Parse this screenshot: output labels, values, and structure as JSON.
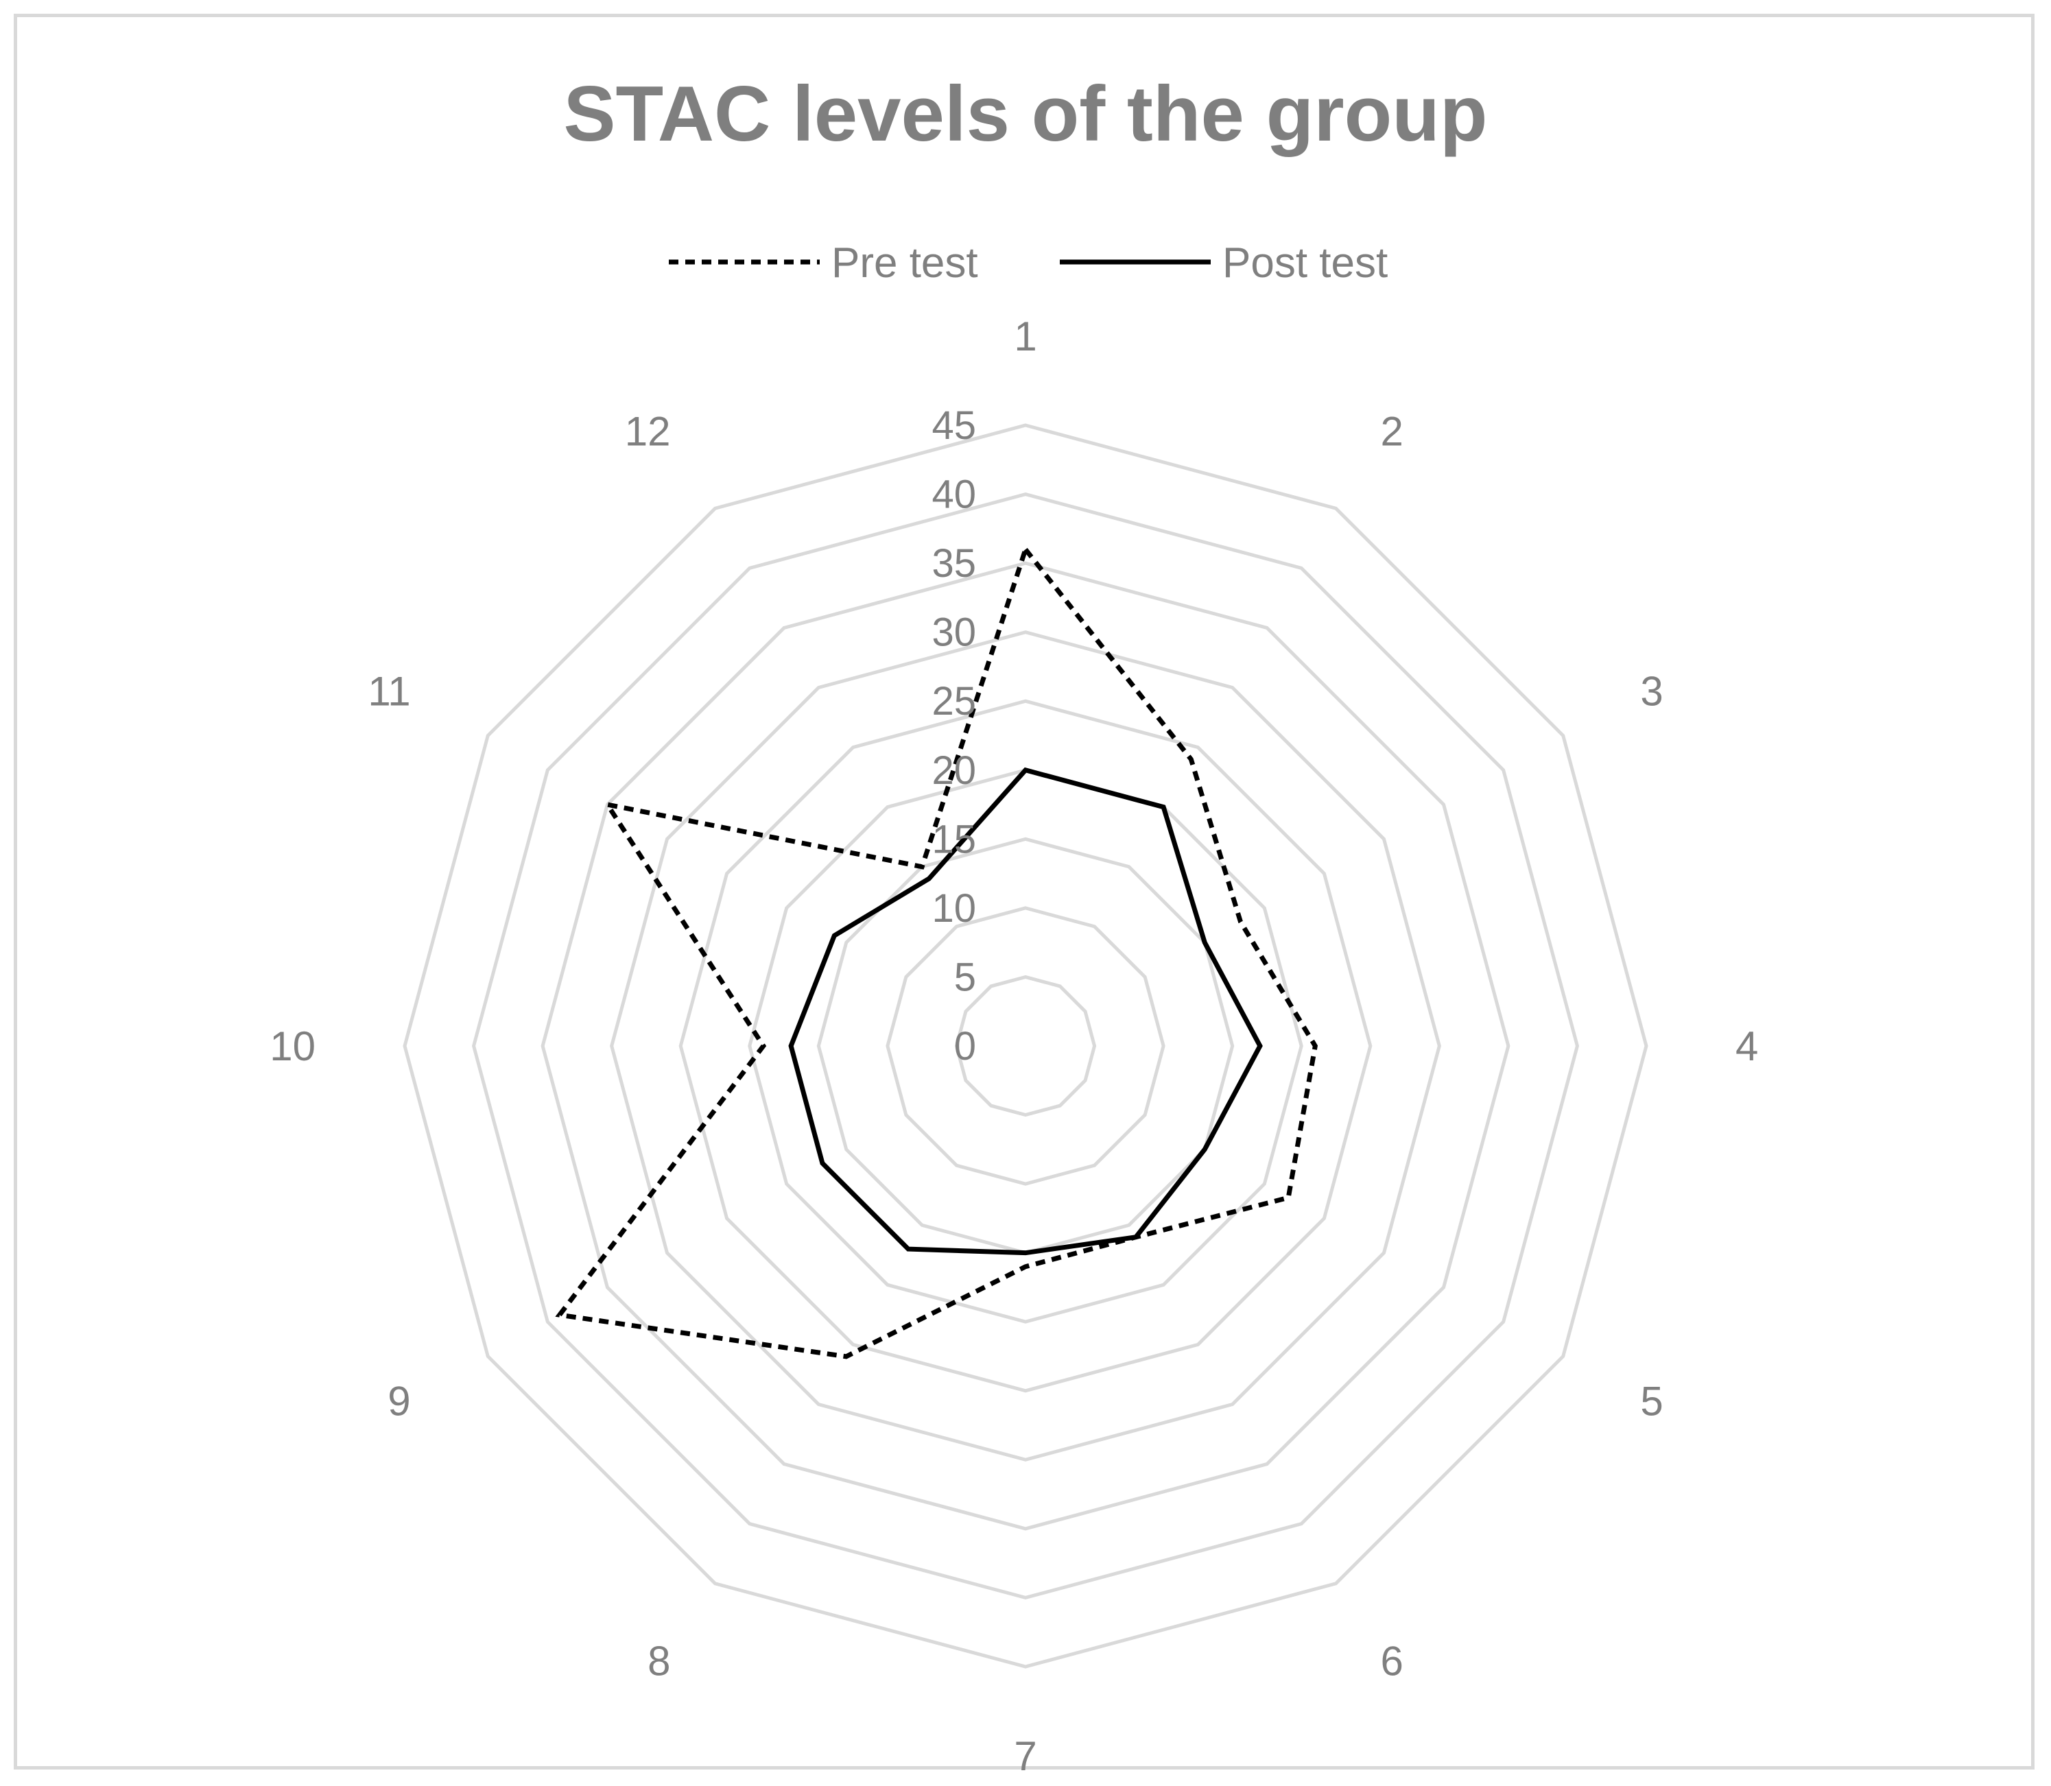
{
  "chart_data": {
    "type": "radar",
    "title": "STAC levels of the group",
    "categories": [
      "1",
      "2",
      "3",
      "4",
      "5",
      "6",
      "7",
      "8",
      "9",
      "10",
      "11",
      "12"
    ],
    "series": [
      {
        "name": "Pre test",
        "style": "dashed",
        "color": "#000000",
        "values": [
          36,
          24,
          18,
          21,
          22,
          16,
          16,
          26,
          39,
          19,
          35,
          15
        ]
      },
      {
        "name": "Post test",
        "style": "solid",
        "color": "#000000",
        "values": [
          20,
          20,
          15,
          17,
          15,
          16,
          15,
          17,
          17,
          17,
          16,
          14
        ]
      }
    ],
    "radial_axis": {
      "range": [
        0,
        45
      ],
      "ticks": [
        "0",
        "5",
        "10",
        "15",
        "20",
        "25",
        "30",
        "35",
        "40",
        "45"
      ]
    },
    "grid": true,
    "legend_position": "top",
    "grid_color": "#d9d9d9",
    "text_color": "#7f7f7f"
  }
}
